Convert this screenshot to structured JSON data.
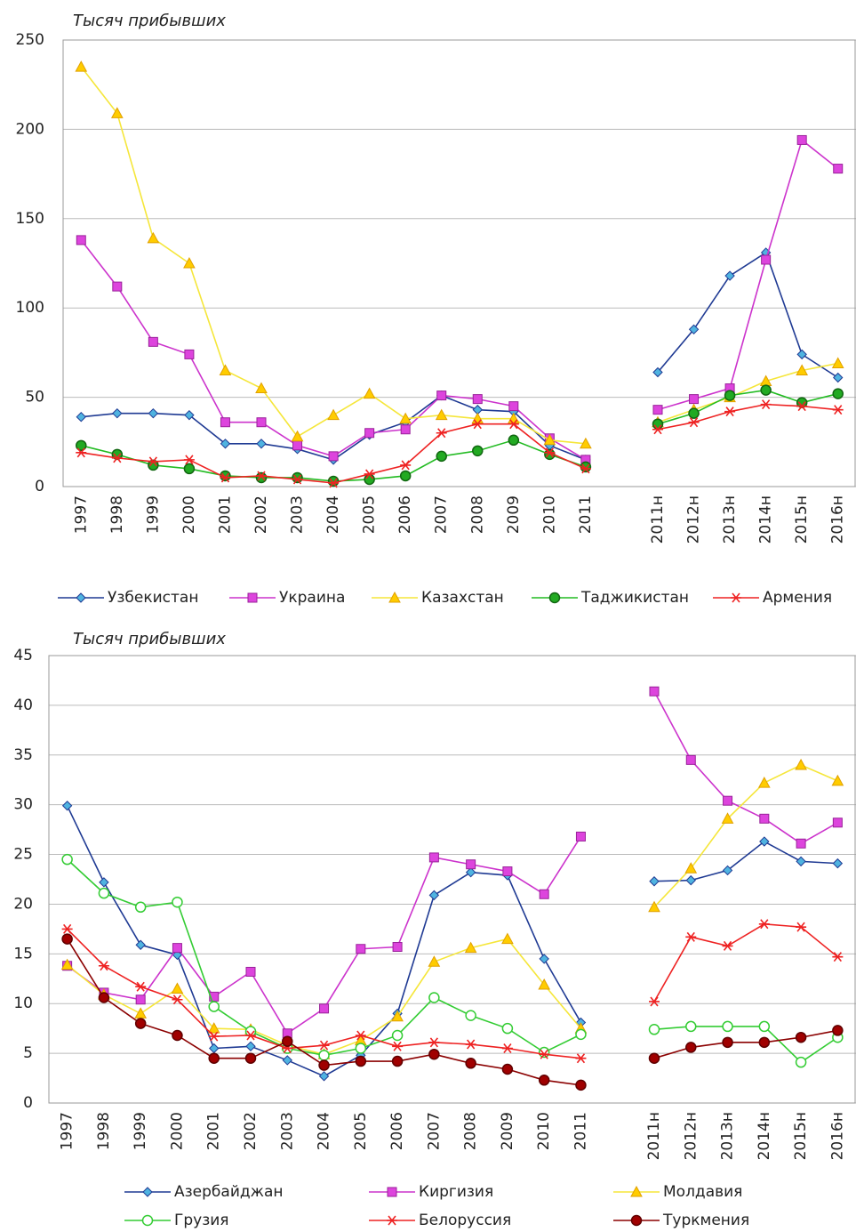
{
  "chart_data": [
    {
      "type": "line",
      "ylabel": "Тысяч прибывших",
      "categories": [
        "1997",
        "1998",
        "1999",
        "2000",
        "2001",
        "2002",
        "2003",
        "2004",
        "2005",
        "2006",
        "2007",
        "2008",
        "2009",
        "2010",
        "2011",
        null,
        "2011н",
        "2012н",
        "2013н",
        "2014н",
        "2015н",
        "2016н"
      ],
      "ylim": [
        0,
        250
      ],
      "yticks": [
        0,
        50,
        100,
        150,
        200,
        250
      ],
      "grid": true,
      "series": [
        {
          "name": "Узбекистан",
          "color": "#1f3a93",
          "marker": "diamond",
          "marker_color": "#4fb3e0",
          "values": [
            39,
            41,
            41,
            40,
            24,
            24,
            21,
            15,
            29,
            36,
            51,
            43,
            42,
            23,
            15,
            null,
            64,
            88,
            118,
            131,
            74,
            61
          ]
        },
        {
          "name": "Украина",
          "color": "#cc33cc",
          "marker": "square",
          "marker_color": "#dd44dd",
          "values": [
            138,
            112,
            81,
            74,
            36,
            36,
            23,
            17,
            30,
            32,
            51,
            49,
            45,
            27,
            15,
            null,
            43,
            49,
            55,
            127,
            194,
            178
          ]
        },
        {
          "name": "Казахстан",
          "color": "#f5e63a",
          "marker": "triangle",
          "marker_color": "#ffcc00",
          "values": [
            235,
            209,
            139,
            125,
            65,
            55,
            28,
            40,
            52,
            38,
            40,
            38,
            38,
            26,
            24,
            null,
            36,
            43,
            50,
            59,
            65,
            69
          ]
        },
        {
          "name": "Таджикистан",
          "color": "#22bb22",
          "marker": "circle",
          "marker_color": "#22aa22",
          "values": [
            23,
            18,
            12,
            10,
            6,
            5,
            5,
            3,
            4,
            6,
            17,
            20,
            26,
            18,
            11,
            null,
            35,
            41,
            51,
            54,
            47,
            52
          ]
        },
        {
          "name": "Армения",
          "color": "#ee2222",
          "marker": "star",
          "marker_color": "#ee2222",
          "values": [
            19,
            16,
            14,
            15,
            5,
            6,
            4,
            2,
            7,
            12,
            30,
            35,
            35,
            19,
            10,
            null,
            32,
            36,
            42,
            46,
            45,
            43
          ]
        }
      ]
    },
    {
      "type": "line",
      "ylabel": "Тысяч прибывших",
      "categories": [
        "1997",
        "1998",
        "1999",
        "2000",
        "2001",
        "2002",
        "2003",
        "2004",
        "2005",
        "2006",
        "2007",
        "2008",
        "2009",
        "2010",
        "2011",
        null,
        "2011н",
        "2012н",
        "2013н",
        "2014н",
        "2015н",
        "2016н"
      ],
      "ylim": [
        0,
        45
      ],
      "yticks": [
        0,
        5,
        10,
        15,
        20,
        25,
        30,
        35,
        40,
        45
      ],
      "grid": true,
      "series": [
        {
          "name": "Азербайджан",
          "color": "#1f3a93",
          "marker": "diamond",
          "marker_color": "#4fb3e0",
          "values": [
            29.9,
            22.2,
            15.9,
            14.9,
            5.5,
            5.7,
            4.3,
            2.7,
            4.8,
            9.0,
            20.9,
            23.2,
            22.9,
            14.5,
            8.1,
            null,
            22.3,
            22.4,
            23.4,
            26.3,
            24.3,
            24.1
          ]
        },
        {
          "name": "Киргизия",
          "color": "#cc33cc",
          "marker": "square",
          "marker_color": "#dd44dd",
          "values": [
            13.8,
            11.1,
            10.4,
            15.6,
            10.7,
            13.2,
            7.0,
            9.5,
            15.5,
            15.7,
            24.7,
            24.0,
            23.3,
            21.0,
            26.8,
            null,
            41.4,
            34.5,
            30.4,
            28.6,
            26.1,
            28.2
          ]
        },
        {
          "name": "Молдавия",
          "color": "#f5e63a",
          "marker": "triangle",
          "marker_color": "#ffcc00",
          "values": [
            13.9,
            10.9,
            9.0,
            11.5,
            7.5,
            7.4,
            5.8,
            4.9,
            6.3,
            8.7,
            14.2,
            15.6,
            16.5,
            11.9,
            7.5,
            null,
            19.7,
            23.6,
            28.6,
            32.2,
            34.0,
            32.4
          ]
        },
        {
          "name": "Грузия",
          "color": "#33cc33",
          "marker": "circle",
          "marker_color": "#ffffff",
          "values": [
            24.5,
            21.1,
            19.7,
            20.2,
            9.7,
            7.2,
            5.5,
            4.8,
            5.5,
            6.8,
            10.6,
            8.8,
            7.5,
            5.1,
            6.9,
            null,
            7.4,
            7.7,
            7.7,
            7.7,
            4.1,
            6.6
          ]
        },
        {
          "name": "Белоруссия",
          "color": "#ee2222",
          "marker": "star",
          "marker_color": "#ee2222",
          "values": [
            17.5,
            13.8,
            11.7,
            10.4,
            6.7,
            6.8,
            5.5,
            5.8,
            6.8,
            5.7,
            6.1,
            5.9,
            5.5,
            4.9,
            4.5,
            null,
            10.2,
            16.7,
            15.8,
            18.0,
            17.7,
            14.7
          ]
        },
        {
          "name": "Туркмения",
          "color": "#8b0000",
          "marker": "circle",
          "marker_color": "#a00000",
          "values": [
            16.5,
            10.6,
            8.0,
            6.8,
            4.5,
            4.5,
            6.2,
            3.8,
            4.2,
            4.2,
            4.9,
            4.0,
            3.4,
            2.3,
            1.8,
            null,
            4.5,
            5.6,
            6.1,
            6.1,
            6.6,
            7.3
          ]
        }
      ]
    }
  ]
}
